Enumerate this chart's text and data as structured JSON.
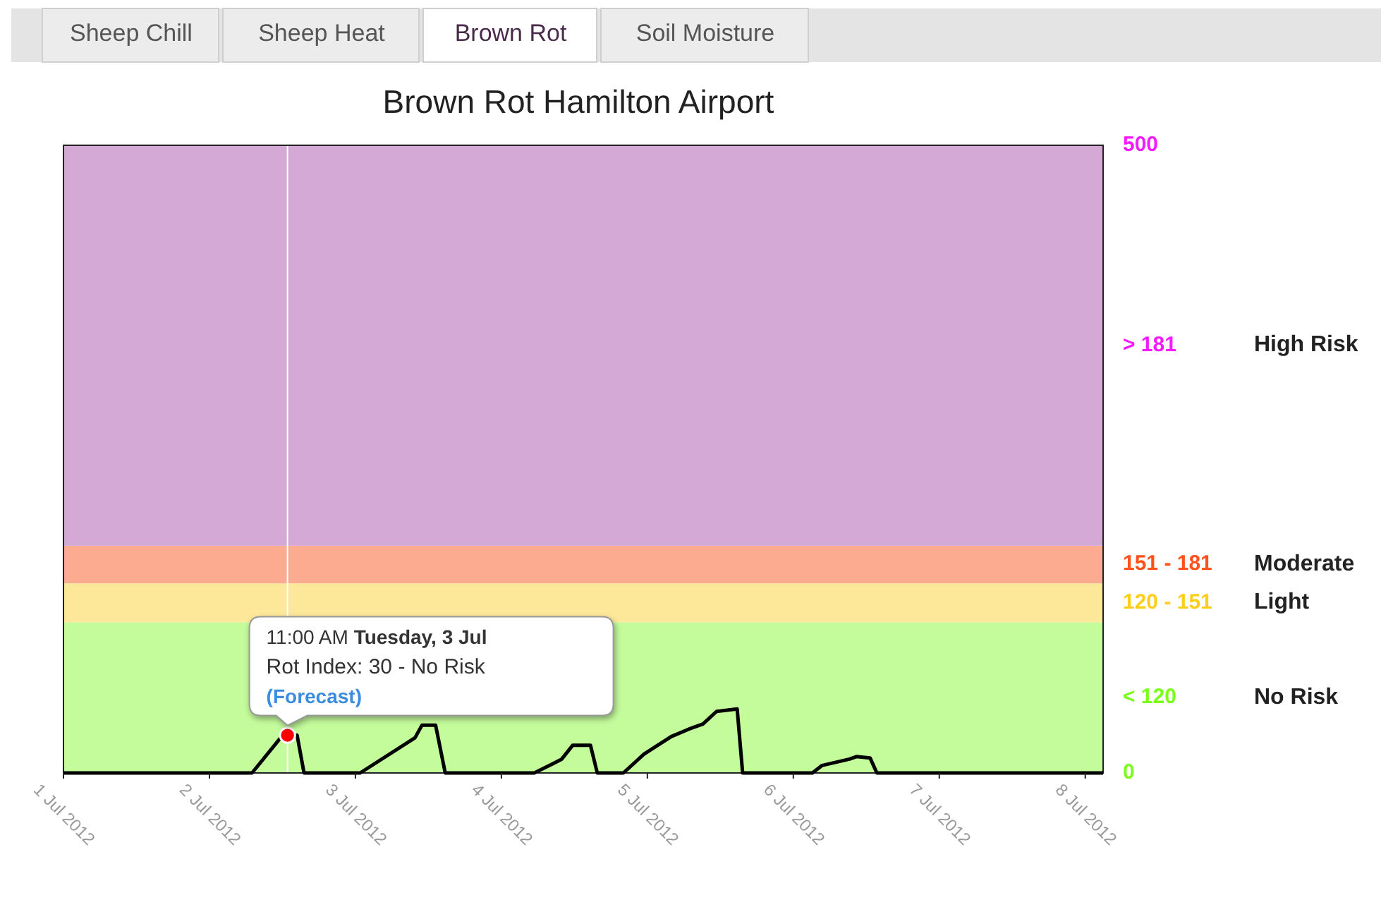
{
  "chart_data": {
    "type": "line",
    "title": "Brown Rot Hamilton Airport",
    "xlim": [
      "2012-07-01T00:00",
      "2012-07-08T02:56"
    ],
    "xticks": [
      {
        "value": "2012-07-01",
        "label": "1 Jul 2012"
      },
      {
        "value": "2012-07-02",
        "label": "2 Jul 2012"
      },
      {
        "value": "2012-07-03",
        "label": "3 Jul 2012"
      },
      {
        "value": "2012-07-04",
        "label": "4 Jul 2012"
      },
      {
        "value": "2012-07-05",
        "label": "5 Jul 2012"
      },
      {
        "value": "2012-07-06",
        "label": "6 Jul 2012"
      },
      {
        "value": "2012-07-07",
        "label": "7 Jul 2012"
      },
      {
        "value": "2012-07-08",
        "label": "8 Jul 2012"
      }
    ],
    "ylim": [
      0,
      500
    ],
    "yticks": [
      0,
      500
    ],
    "bands": [
      {
        "axis": "y",
        "from": 0,
        "to": 120,
        "label": "< 120",
        "color": "#c4fc9c"
      },
      {
        "axis": "y",
        "from": 120,
        "to": 151,
        "label": "120 - 151",
        "color": "#fde89a"
      },
      {
        "axis": "y",
        "from": 151,
        "to": 181,
        "label": "151 - 181",
        "color": "#fdab90"
      },
      {
        "axis": "y",
        "from": 181,
        "to": 500,
        "label": "> 181",
        "color": "#d4a9d6"
      }
    ],
    "ref_lines": [
      {
        "axis": "x",
        "value": "2012-07-02T12:50",
        "color": "#ffffff"
      }
    ],
    "series": [
      {
        "color": "#000000",
        "x": [
          "2012-07-01T00:00",
          "2012-07-02T07:00",
          "2012-07-02T11:42",
          "2012-07-02T12:50",
          "2012-07-02T14:25",
          "2012-07-02T15:33",
          "2012-07-03T00:47",
          "2012-07-03T09:48",
          "2012-07-03T10:56",
          "2012-07-03T13:11",
          "2012-07-03T14:46",
          "2012-07-04T05:25",
          "2012-07-04T08:20",
          "2012-07-04T09:55",
          "2012-07-04T11:43",
          "2012-07-04T14:39",
          "2012-07-04T15:46",
          "2012-07-04T20:04",
          "2012-07-04T23:26",
          "2012-07-05T03:56",
          "2012-07-05T06:52",
          "2012-07-05T09:08",
          "2012-07-05T11:23",
          "2012-07-05T14:46",
          "2012-07-05T15:40",
          "2012-07-06T03:09",
          "2012-07-06T04:44",
          "2012-07-06T09:14",
          "2012-07-06T10:22",
          "2012-07-06T12:37",
          "2012-07-06T13:44",
          "2012-07-08T02:56"
        ],
        "values": [
          0,
          0,
          28,
          30,
          30,
          0,
          0,
          28,
          38,
          38,
          0,
          0,
          7,
          11,
          22,
          22,
          0,
          0,
          15,
          29,
          35,
          39,
          49,
          51,
          0,
          0,
          6,
          11,
          13,
          12,
          0,
          0
        ]
      },
      {
        "type": "scatter",
        "color": "#ff0000",
        "marker": "circle",
        "x": [
          "2012-07-02T12:50"
        ],
        "values": [
          30
        ]
      }
    ],
    "annotations": [
      "Sheep Chill",
      "Sheep Heat",
      "Brown Rot",
      "Soil Moisture",
      "High Risk",
      "Moderate",
      "Light",
      "No Risk",
      "11:00 AM",
      "Tuesday, 3 Jul",
      "Rot Index: 30 - No Risk",
      "(Forecast)"
    ]
  }
}
